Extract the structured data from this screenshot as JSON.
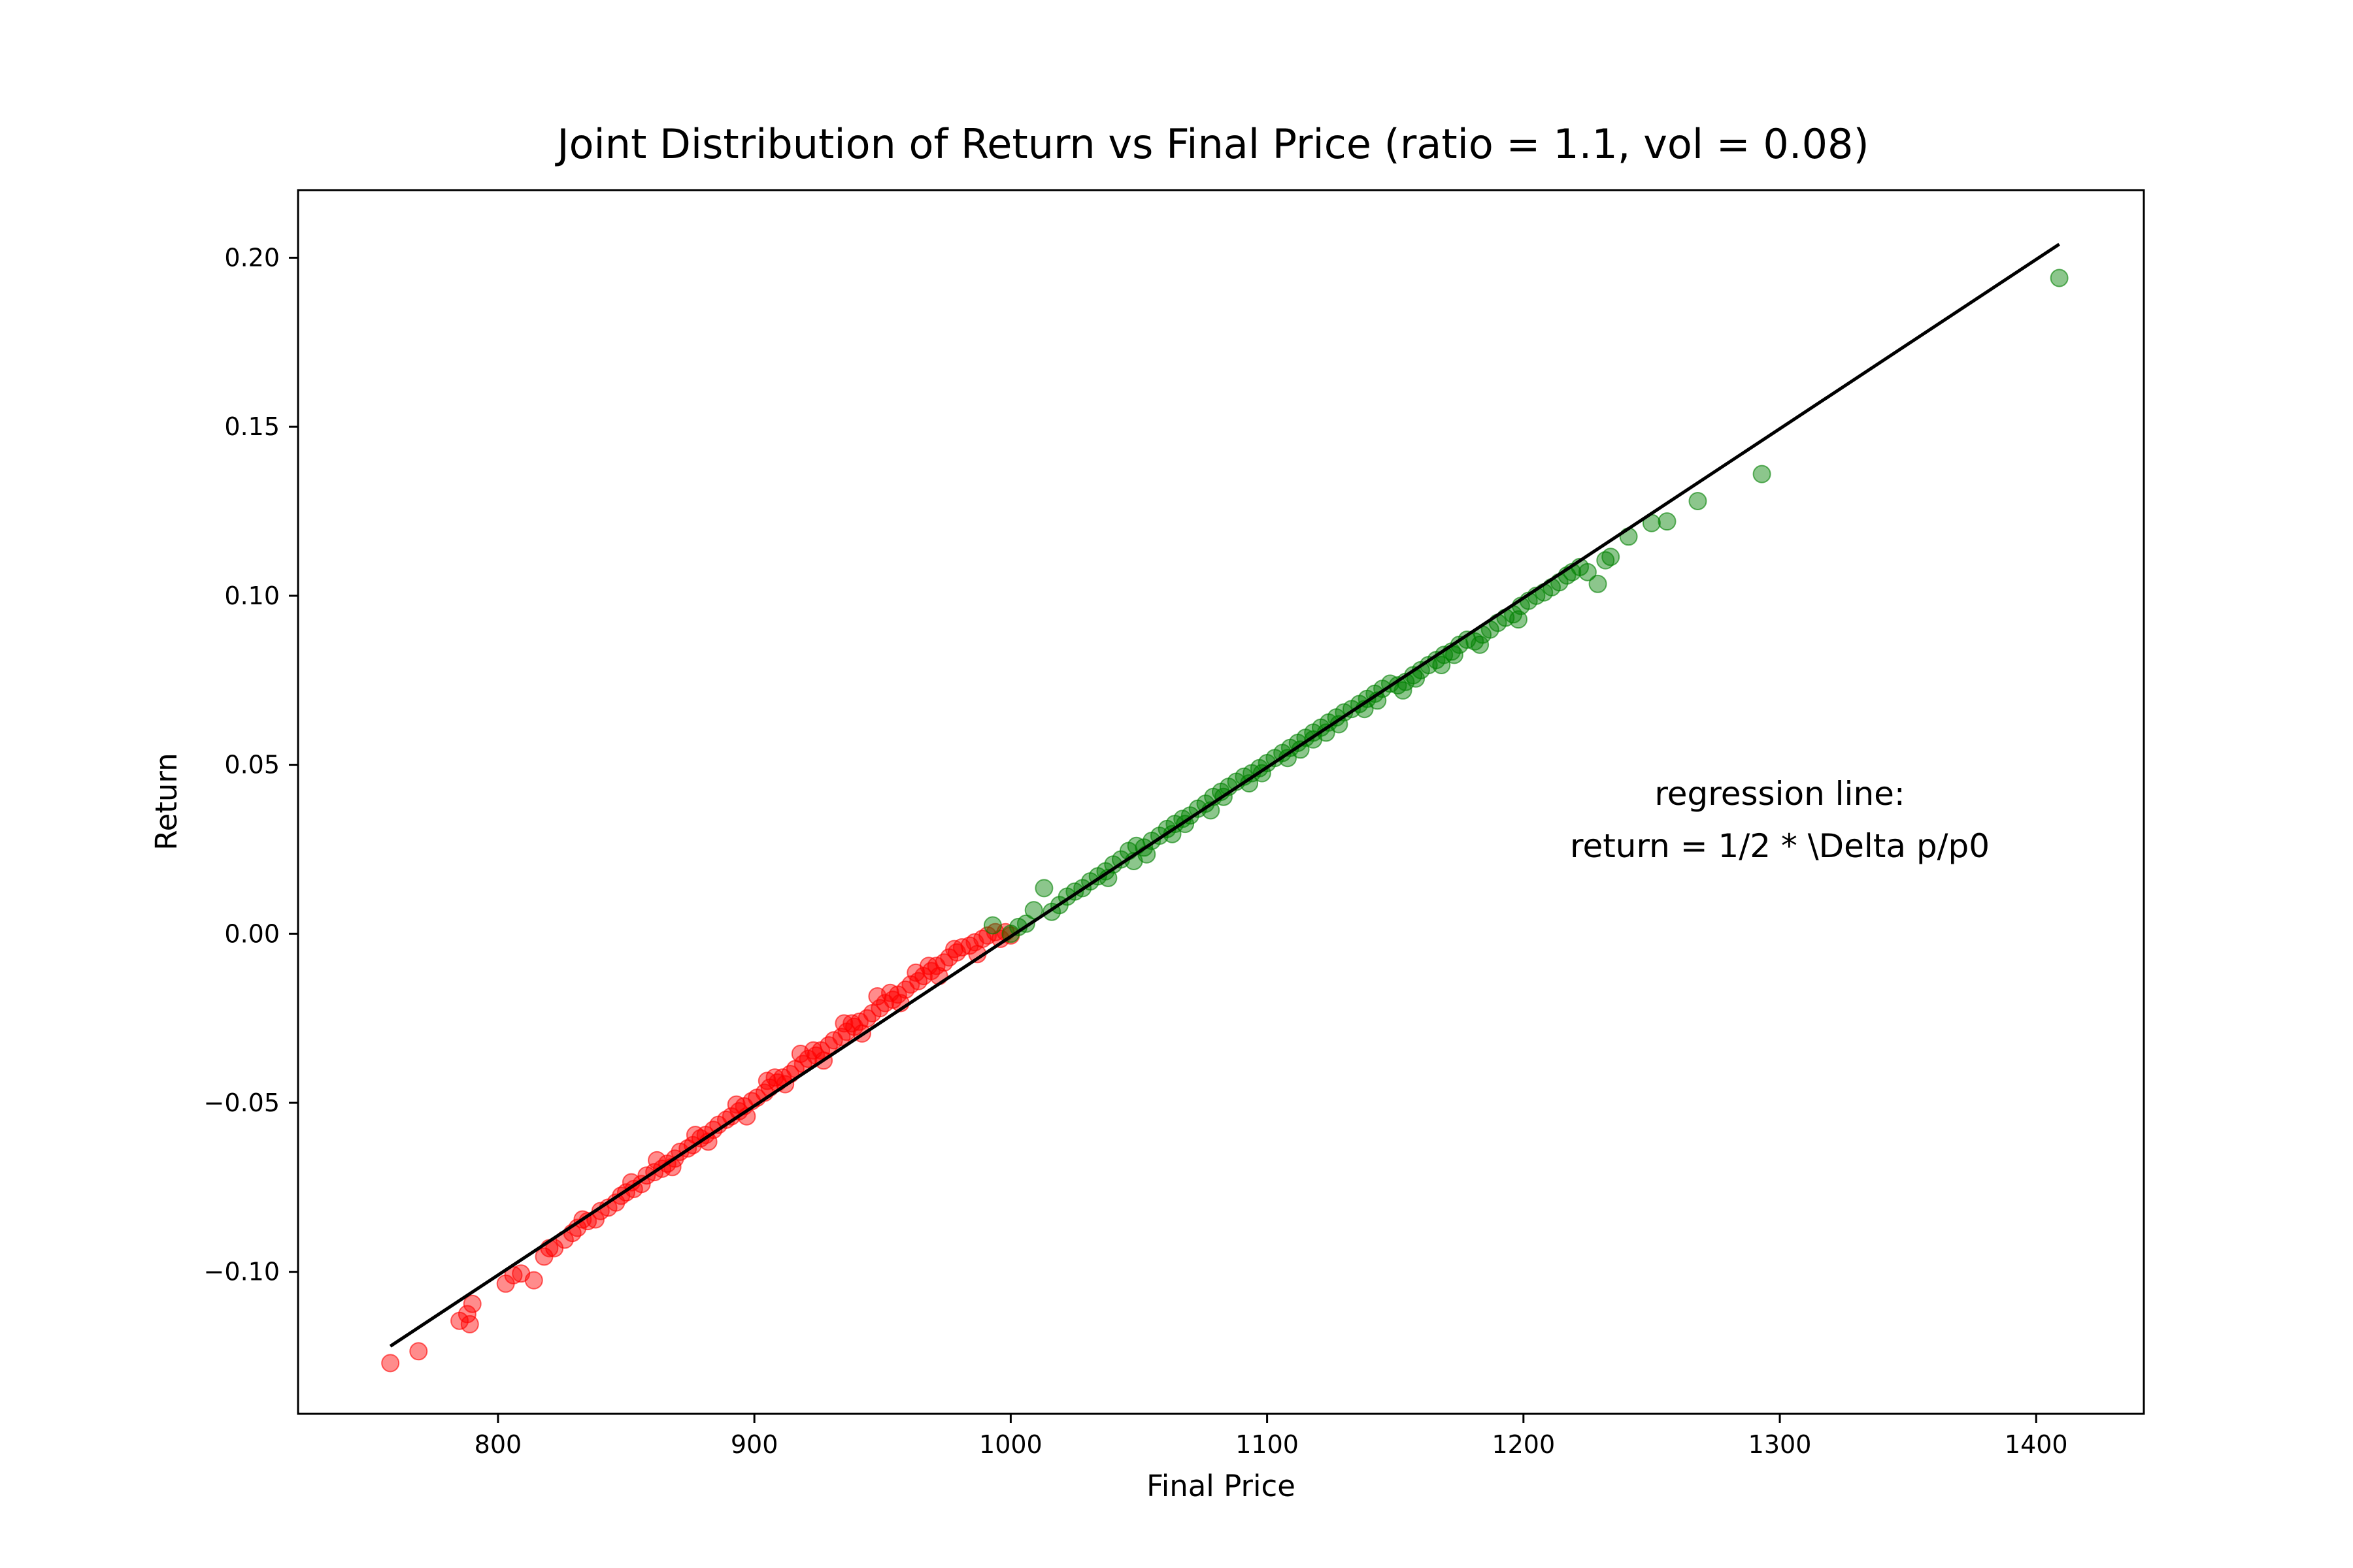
{
  "chart_data": {
    "type": "scatter",
    "title": "Joint Distribution of Return vs Final Price (ratio = 1.1, vol = 0.08)",
    "xlabel": "Final Price",
    "ylabel": "Return",
    "xlim": [
      722,
      1442
    ],
    "ylim": [
      -0.142,
      0.22
    ],
    "x_ticks": [
      {
        "value": 800,
        "label": "800"
      },
      {
        "value": 900,
        "label": "900"
      },
      {
        "value": 1000,
        "label": "1000"
      },
      {
        "value": 1100,
        "label": "1100"
      },
      {
        "value": 1200,
        "label": "1200"
      },
      {
        "value": 1300,
        "label": "1300"
      },
      {
        "value": 1400,
        "label": "1400"
      }
    ],
    "y_ticks": [
      {
        "value": -0.1,
        "label": "−0.10"
      },
      {
        "value": -0.05,
        "label": "−0.05"
      },
      {
        "value": 0.0,
        "label": "0.00"
      },
      {
        "value": 0.05,
        "label": "0.05"
      },
      {
        "value": 0.1,
        "label": "0.10"
      },
      {
        "value": 0.15,
        "label": "0.15"
      },
      {
        "value": 0.2,
        "label": "0.20"
      }
    ],
    "grid": false,
    "annotation": {
      "lines": [
        "regression line:",
        "return = 1/2 * \\Delta p/p0"
      ],
      "x": 1300,
      "y": 0.03
    },
    "regression_line": {
      "color": "#000000",
      "points": [
        [
          758,
          -0.122
        ],
        [
          1409,
          0.204
        ]
      ]
    },
    "series": [
      {
        "color": "#ff0000",
        "opacity": 0.45,
        "points": [
          [
            758,
            -0.127
          ],
          [
            769,
            -0.1235
          ],
          [
            785,
            -0.1145
          ],
          [
            789,
            -0.1155
          ],
          [
            790,
            -0.1095
          ],
          [
            788,
            -0.1125
          ],
          [
            803,
            -0.1035
          ],
          [
            806,
            -0.101
          ],
          [
            809,
            -0.1005
          ],
          [
            814,
            -0.1025
          ],
          [
            818,
            -0.0955
          ],
          [
            820,
            -0.093
          ],
          [
            822,
            -0.093
          ],
          [
            826,
            -0.0905
          ],
          [
            829,
            -0.0885
          ],
          [
            831,
            -0.087
          ],
          [
            833,
            -0.0845
          ],
          [
            835,
            -0.085
          ],
          [
            838,
            -0.0845
          ],
          [
            840,
            -0.082
          ],
          [
            843,
            -0.081
          ],
          [
            846,
            -0.0795
          ],
          [
            848,
            -0.0775
          ],
          [
            850,
            -0.0765
          ],
          [
            853,
            -0.0755
          ],
          [
            856,
            -0.074
          ],
          [
            858,
            -0.0715
          ],
          [
            861,
            -0.0705
          ],
          [
            864,
            -0.0695
          ],
          [
            866,
            -0.068
          ],
          [
            869,
            -0.0665
          ],
          [
            871,
            -0.0645
          ],
          [
            874,
            -0.0635
          ],
          [
            876,
            -0.0625
          ],
          [
            879,
            -0.0605
          ],
          [
            881,
            -0.0595
          ],
          [
            884,
            -0.058
          ],
          [
            886,
            -0.0565
          ],
          [
            889,
            -0.055
          ],
          [
            891,
            -0.054
          ],
          [
            894,
            -0.0525
          ],
          [
            896,
            -0.051
          ],
          [
            899,
            -0.0495
          ],
          [
            901,
            -0.0485
          ],
          [
            904,
            -0.047
          ],
          [
            906,
            -0.0455
          ],
          [
            909,
            -0.044
          ],
          [
            911,
            -0.0425
          ],
          [
            914,
            -0.0415
          ],
          [
            916,
            -0.04
          ],
          [
            919,
            -0.0385
          ],
          [
            921,
            -0.037
          ],
          [
            924,
            -0.036
          ],
          [
            926,
            -0.0345
          ],
          [
            929,
            -0.033
          ],
          [
            931,
            -0.0315
          ],
          [
            934,
            -0.0305
          ],
          [
            936,
            -0.029
          ],
          [
            939,
            -0.0275
          ],
          [
            941,
            -0.026
          ],
          [
            944,
            -0.025
          ],
          [
            946,
            -0.0235
          ],
          [
            949,
            -0.022
          ],
          [
            951,
            -0.0205
          ],
          [
            954,
            -0.0195
          ],
          [
            956,
            -0.018
          ],
          [
            959,
            -0.0165
          ],
          [
            961,
            -0.015
          ],
          [
            964,
            -0.014
          ],
          [
            966,
            -0.0125
          ],
          [
            969,
            -0.011
          ],
          [
            971,
            -0.0095
          ],
          [
            974,
            -0.0085
          ],
          [
            976,
            -0.007
          ],
          [
            979,
            -0.0055
          ],
          [
            981,
            -0.004
          ],
          [
            984,
            -0.0035
          ],
          [
            986,
            -0.0025
          ],
          [
            989,
            -0.0015
          ],
          [
            991,
            -0.0005
          ],
          [
            994,
            0.0005
          ],
          [
            996,
            -0.0015
          ],
          [
            998,
            0.0005
          ],
          [
            1000,
            -0.0005
          ],
          [
            852,
            -0.0735
          ],
          [
            868,
            -0.069
          ],
          [
            882,
            -0.0615
          ],
          [
            897,
            -0.054
          ],
          [
            912,
            -0.0445
          ],
          [
            927,
            -0.0375
          ],
          [
            942,
            -0.0295
          ],
          [
            957,
            -0.0205
          ],
          [
            972,
            -0.0125
          ],
          [
            987,
            -0.006
          ],
          [
            905,
            -0.0435
          ],
          [
            918,
            -0.0355
          ],
          [
            935,
            -0.0265
          ],
          [
            948,
            -0.0185
          ],
          [
            963,
            -0.0115
          ],
          [
            978,
            -0.0045
          ],
          [
            862,
            -0.067
          ],
          [
            877,
            -0.0595
          ],
          [
            893,
            -0.0505
          ],
          [
            908,
            -0.0425
          ],
          [
            923,
            -0.0345
          ],
          [
            938,
            -0.0265
          ],
          [
            953,
            -0.0175
          ],
          [
            968,
            -0.0095
          ]
        ]
      },
      {
        "color": "#008000",
        "opacity": 0.45,
        "points": [
          [
            993,
            0.0025
          ],
          [
            1000,
            0.0
          ],
          [
            1003,
            0.002
          ],
          [
            1006,
            0.003
          ],
          [
            1009,
            0.007
          ],
          [
            1013,
            0.0135
          ],
          [
            1016,
            0.0065
          ],
          [
            1019,
            0.0085
          ],
          [
            1022,
            0.011
          ],
          [
            1025,
            0.0125
          ],
          [
            1028,
            0.0135
          ],
          [
            1031,
            0.0155
          ],
          [
            1034,
            0.017
          ],
          [
            1037,
            0.0185
          ],
          [
            1040,
            0.0205
          ],
          [
            1043,
            0.022
          ],
          [
            1046,
            0.0245
          ],
          [
            1049,
            0.026
          ],
          [
            1052,
            0.0255
          ],
          [
            1055,
            0.0275
          ],
          [
            1058,
            0.029
          ],
          [
            1061,
            0.031
          ],
          [
            1064,
            0.0325
          ],
          [
            1067,
            0.034
          ],
          [
            1070,
            0.035
          ],
          [
            1073,
            0.037
          ],
          [
            1076,
            0.0385
          ],
          [
            1079,
            0.0405
          ],
          [
            1082,
            0.042
          ],
          [
            1085,
            0.0435
          ],
          [
            1088,
            0.045
          ],
          [
            1091,
            0.0465
          ],
          [
            1094,
            0.0475
          ],
          [
            1097,
            0.049
          ],
          [
            1100,
            0.0505
          ],
          [
            1103,
            0.052
          ],
          [
            1106,
            0.0535
          ],
          [
            1109,
            0.055
          ],
          [
            1112,
            0.0565
          ],
          [
            1115,
            0.058
          ],
          [
            1118,
            0.0595
          ],
          [
            1121,
            0.061
          ],
          [
            1124,
            0.0625
          ],
          [
            1127,
            0.064
          ],
          [
            1130,
            0.0655
          ],
          [
            1133,
            0.0665
          ],
          [
            1136,
            0.068
          ],
          [
            1139,
            0.0695
          ],
          [
            1142,
            0.071
          ],
          [
            1145,
            0.0725
          ],
          [
            1148,
            0.074
          ],
          [
            1151,
            0.0735
          ],
          [
            1154,
            0.0745
          ],
          [
            1157,
            0.0765
          ],
          [
            1160,
            0.078
          ],
          [
            1163,
            0.0795
          ],
          [
            1166,
            0.081
          ],
          [
            1169,
            0.0825
          ],
          [
            1172,
            0.0835
          ],
          [
            1175,
            0.0855
          ],
          [
            1178,
            0.087
          ],
          [
            1181,
            0.0865
          ],
          [
            1184,
            0.0885
          ],
          [
            1187,
            0.09
          ],
          [
            1190,
            0.092
          ],
          [
            1193,
            0.0935
          ],
          [
            1196,
            0.0945
          ],
          [
            1199,
            0.097
          ],
          [
            1202,
            0.0985
          ],
          [
            1205,
            0.1
          ],
          [
            1208,
            0.101
          ],
          [
            1211,
            0.1025
          ],
          [
            1214,
            0.104
          ],
          [
            1217,
            0.106
          ],
          [
            1219,
            0.107
          ],
          [
            1222,
            0.1085
          ],
          [
            1225,
            0.107
          ],
          [
            1229,
            0.1035
          ],
          [
            1232,
            0.1105
          ],
          [
            1234,
            0.1115
          ],
          [
            1241,
            0.1175
          ],
          [
            1250,
            0.1215
          ],
          [
            1256,
            0.122
          ],
          [
            1268,
            0.128
          ],
          [
            1293,
            0.136
          ],
          [
            1409,
            0.194
          ],
          [
            1068,
            0.0325
          ],
          [
            1083,
            0.0405
          ],
          [
            1098,
            0.0475
          ],
          [
            1113,
            0.0545
          ],
          [
            1128,
            0.062
          ],
          [
            1143,
            0.069
          ],
          [
            1158,
            0.0755
          ],
          [
            1173,
            0.0825
          ],
          [
            1053,
            0.0235
          ],
          [
            1038,
            0.0165
          ],
          [
            1093,
            0.0445
          ],
          [
            1108,
            0.052
          ],
          [
            1123,
            0.0595
          ],
          [
            1138,
            0.0665
          ],
          [
            1153,
            0.072
          ],
          [
            1168,
            0.0795
          ],
          [
            1183,
            0.0855
          ],
          [
            1198,
            0.093
          ],
          [
            1078,
            0.0365
          ],
          [
            1063,
            0.0295
          ],
          [
            1048,
            0.0215
          ],
          [
            1118,
            0.0575
          ]
        ]
      }
    ]
  }
}
